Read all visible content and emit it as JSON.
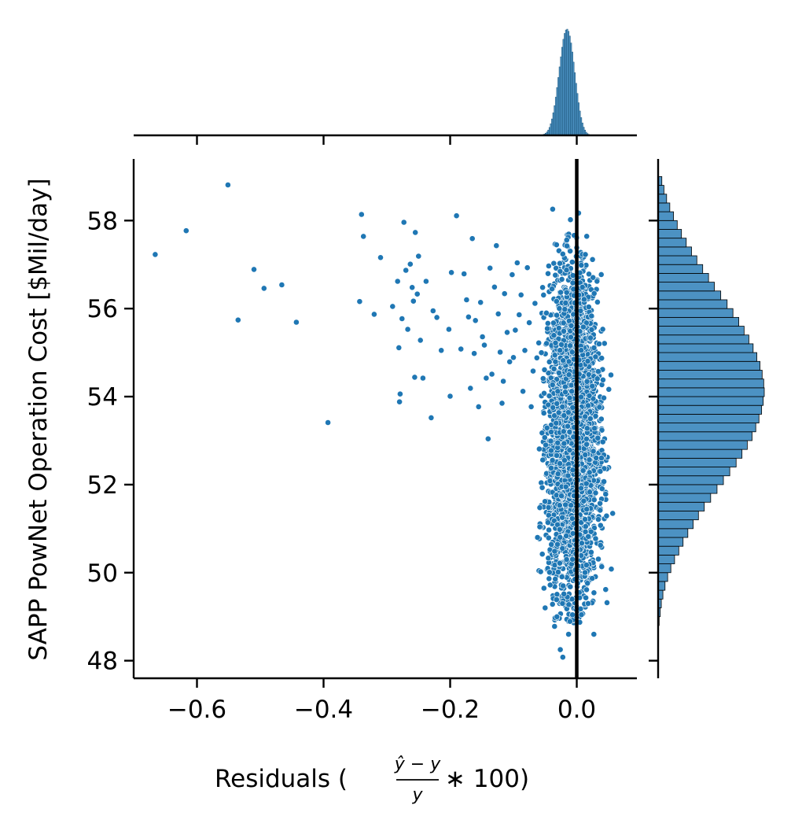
{
  "chart_data": {
    "type": "scatter",
    "subtype": "jointplot",
    "title": "",
    "xlabel_prefix": "Residuals (",
    "xlabel_frac_num": "ŷ − y",
    "xlabel_frac_den": "y",
    "xlabel_suffix": " ∗ 100)",
    "ylabel": "SAPP PowNet Operation Cost [$Mil/day]",
    "xlim": [
      -0.7,
      0.095
    ],
    "ylim": [
      47.6,
      59.4
    ],
    "xticks": [
      -0.6,
      -0.4,
      -0.2,
      0.0
    ],
    "xtick_labels": [
      "−0.6",
      "−0.4",
      "−0.2",
      "0.0"
    ],
    "yticks": [
      48,
      50,
      52,
      54,
      56,
      58
    ],
    "ytick_labels": [
      "48",
      "50",
      "52",
      "54",
      "56",
      "58"
    ],
    "reference_line_x": 0.0,
    "grid": false,
    "color": "#1f77b4",
    "outlier_points": [
      [
        -0.666,
        57.23
      ],
      [
        -0.617,
        57.77
      ],
      [
        -0.551,
        58.81
      ],
      [
        -0.535,
        55.74
      ],
      [
        -0.51,
        56.89
      ],
      [
        -0.494,
        56.46
      ],
      [
        -0.466,
        56.54
      ],
      [
        -0.443,
        55.69
      ],
      [
        -0.393,
        53.41
      ],
      [
        -0.343,
        56.16
      ],
      [
        -0.34,
        58.14
      ],
      [
        -0.337,
        57.64
      ],
      [
        -0.32,
        55.87
      ],
      [
        -0.31,
        57.16
      ],
      [
        -0.291,
        56.05
      ],
      [
        -0.283,
        56.62
      ],
      [
        -0.281,
        55.11
      ],
      [
        -0.28,
        53.88
      ],
      [
        -0.279,
        54.06
      ],
      [
        -0.276,
        55.77
      ],
      [
        -0.273,
        57.96
      ],
      [
        -0.27,
        56.87
      ],
      [
        -0.267,
        55.53
      ],
      [
        -0.263,
        57.01
      ],
      [
        -0.26,
        56.48
      ],
      [
        -0.258,
        56.17
      ],
      [
        -0.256,
        54.44
      ],
      [
        -0.255,
        57.73
      ],
      [
        -0.252,
        56.33
      ],
      [
        -0.25,
        57.19
      ],
      [
        -0.247,
        55.28
      ],
      [
        -0.243,
        54.42
      ],
      [
        -0.238,
        56.62
      ],
      [
        -0.23,
        53.52
      ],
      [
        -0.227,
        55.95
      ],
      [
        -0.221,
        55.8
      ],
      [
        -0.214,
        55.05
      ],
      [
        -0.202,
        55.53
      ],
      [
        -0.2,
        54.01
      ],
      [
        -0.198,
        56.82
      ],
      [
        -0.19,
        58.11
      ],
      [
        -0.183,
        55.08
      ],
      [
        -0.178,
        56.79
      ],
      [
        -0.174,
        56.2
      ],
      [
        -0.171,
        55.81
      ],
      [
        -0.168,
        54.19
      ],
      [
        -0.165,
        57.59
      ],
      [
        -0.162,
        54.98
      ],
      [
        -0.16,
        55.73
      ],
      [
        -0.155,
        53.77
      ],
      [
        -0.152,
        56.14
      ],
      [
        -0.149,
        55.36
      ],
      [
        -0.146,
        55.17
      ],
      [
        -0.143,
        54.42
      ],
      [
        -0.14,
        53.04
      ],
      [
        -0.137,
        56.92
      ],
      [
        -0.134,
        54.51
      ],
      [
        -0.13,
        56.49
      ],
      [
        -0.127,
        57.43
      ],
      [
        -0.124,
        55.88
      ],
      [
        -0.121,
        55.01
      ],
      [
        -0.118,
        53.85
      ],
      [
        -0.116,
        54.35
      ],
      [
        -0.114,
        56.34
      ],
      [
        -0.11,
        55.46
      ],
      [
        -0.106,
        54.79
      ],
      [
        -0.102,
        56.77
      ],
      [
        -0.1,
        54.89
      ],
      [
        -0.097,
        55.51
      ],
      [
        -0.094,
        57.04
      ],
      [
        -0.091,
        55.86
      ],
      [
        -0.088,
        56.31
      ],
      [
        -0.085,
        54.12
      ],
      [
        -0.082,
        55.05
      ],
      [
        -0.078,
        56.93
      ],
      [
        -0.075,
        55.68
      ],
      [
        -0.072,
        53.77
      ],
      [
        -0.069,
        54.58
      ],
      [
        -0.066,
        56.12
      ],
      [
        -0.063,
        54.88
      ],
      [
        -0.06,
        55.22
      ],
      [
        -0.057,
        50.02
      ],
      [
        -0.054,
        56.48
      ],
      [
        -0.051,
        54.61
      ],
      [
        -0.048,
        55.9
      ],
      [
        -0.045,
        50.33
      ],
      [
        -0.042,
        49.72
      ],
      [
        -0.038,
        58.26
      ],
      [
        -0.035,
        48.78
      ],
      [
        -0.03,
        54.12
      ],
      [
        -0.026,
        48.25
      ],
      [
        -0.022,
        48.08
      ],
      [
        -0.013,
        48.6
      ],
      [
        0.003,
        58.17
      ],
      [
        0.018,
        49.3
      ],
      [
        0.027,
        48.6
      ],
      [
        -0.062,
        50.8
      ],
      [
        -0.05,
        49.2
      ],
      [
        -0.01,
        58.02
      ],
      [
        -0.032,
        57.45
      ]
    ],
    "dense_cluster": {
      "x_center": -0.006,
      "x_sd": 0.019,
      "y_center": 53.1,
      "y_sd": 1.75,
      "y_range": [
        48.8,
        57.8
      ],
      "n_points": 4000
    },
    "marginal_x_histogram": {
      "bin_start": -0.06,
      "bin_width": 0.002,
      "counts": [
        1,
        1,
        2,
        3,
        5,
        8,
        13,
        20,
        30,
        44,
        62,
        85,
        112,
        144,
        180,
        218,
        258,
        296,
        332,
        362,
        384,
        397,
        400,
        392,
        374,
        348,
        314,
        276,
        236,
        196,
        158,
        123,
        92,
        67,
        47,
        31,
        20,
        12,
        7,
        4,
        2,
        1,
        1,
        1,
        1
      ]
    },
    "marginal_y_histogram": {
      "bin_start": 48.8,
      "bin_width": 0.2,
      "counts": [
        2,
        4,
        6,
        9,
        13,
        18,
        24,
        31,
        39,
        47,
        56,
        66,
        76,
        87,
        99,
        111,
        123,
        135,
        147,
        158,
        168,
        177,
        184,
        190,
        195,
        198,
        200,
        199,
        196,
        192,
        186,
        179,
        171,
        162,
        152,
        141,
        130,
        118,
        106,
        95,
        84,
        73,
        63,
        53,
        44,
        36,
        29,
        22,
        16,
        11,
        7
      ]
    }
  }
}
